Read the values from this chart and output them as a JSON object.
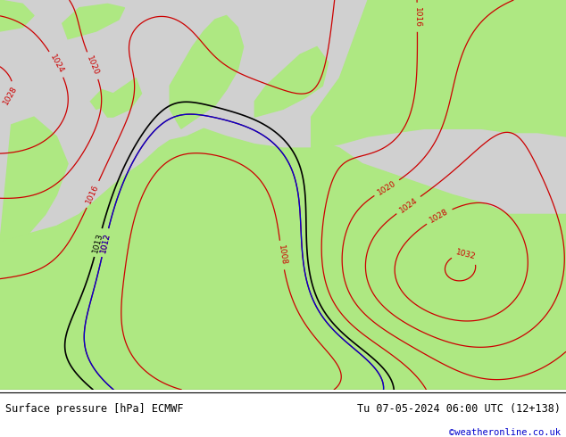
{
  "title_left": "Surface pressure [hPa] ECMWF",
  "title_right": "Tu 07-05-2024 06:00 UTC (12+138)",
  "credit": "©weatheronline.co.uk",
  "land_color": "#aee882",
  "sea_color": "#d0d0d0",
  "isobar_red_color": "#cc0000",
  "isobar_black_color": "#000000",
  "isobar_blue_color": "#0000cc",
  "footer_text_color": "#000000",
  "credit_color": "#0000cc",
  "map_border_color": "#000000"
}
